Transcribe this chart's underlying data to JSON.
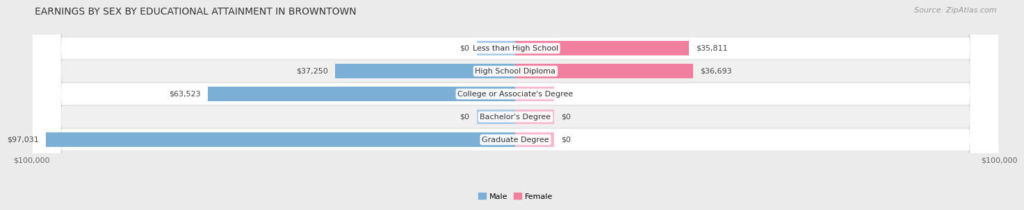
{
  "title": "EARNINGS BY SEX BY EDUCATIONAL ATTAINMENT IN BROWNTOWN",
  "source": "Source: ZipAtlas.com",
  "categories": [
    "Less than High School",
    "High School Diploma",
    "College or Associate's Degree",
    "Bachelor's Degree",
    "Graduate Degree"
  ],
  "male_values": [
    0,
    37250,
    63523,
    0,
    97031
  ],
  "female_values": [
    35811,
    36693,
    0,
    0,
    0
  ],
  "male_color": "#7bafd6",
  "female_color": "#f07fa0",
  "male_zero_color": "#aacbe8",
  "female_zero_color": "#f9b8cc",
  "bar_height": 0.62,
  "zero_stub": 8000,
  "xlim": [
    -100000,
    100000
  ],
  "bg_color": "#ebebeb",
  "row_bg_even": "#ffffff",
  "row_bg_odd": "#f0f0f0",
  "title_fontsize": 10,
  "source_fontsize": 8,
  "label_fontsize": 8,
  "category_fontsize": 8,
  "tick_fontsize": 8,
  "legend_fontsize": 8
}
